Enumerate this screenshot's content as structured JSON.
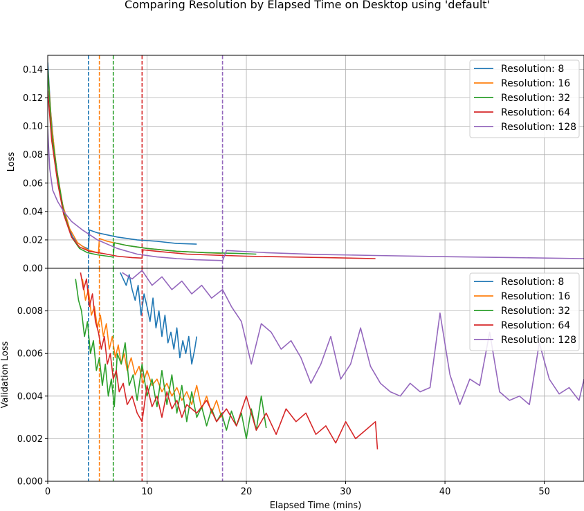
{
  "title": "Comparing Resolution by Elapsed Time on Desktop using 'default'",
  "colors": {
    "res8": "#1f77b4",
    "res16": "#ff7f0e",
    "res32": "#2ca02c",
    "res64": "#d62728",
    "res128": "#9467bd"
  },
  "chart_data": [
    {
      "type": "line",
      "panel": "top",
      "xlabel": "",
      "ylabel": "Loss",
      "xlim": [
        0,
        54
      ],
      "ylim": [
        0,
        0.15
      ],
      "yticks": [
        "0.00",
        "0.02",
        "0.04",
        "0.06",
        "0.08",
        "0.10",
        "0.12",
        "0.14"
      ],
      "grid": true,
      "legend": "upper right",
      "series": [
        {
          "name": "Resolution: 8",
          "color": "#1f77b4",
          "x": [
            0,
            0.3,
            0.7,
            1.2,
            1.8,
            2.5,
            3.0,
            3.5,
            4.0,
            4.1,
            4.2,
            5,
            7,
            9,
            11,
            13,
            15
          ],
          "y": [
            0.145,
            0.11,
            0.08,
            0.055,
            0.035,
            0.022,
            0.018,
            0.0155,
            0.014,
            0.0138,
            0.027,
            0.025,
            0.022,
            0.02,
            0.019,
            0.0175,
            0.017
          ]
        },
        {
          "name": "Resolution: 16",
          "color": "#ff7f0e",
          "x": [
            0,
            0.4,
            0.9,
            1.5,
            2.2,
            3.0,
            4.0,
            5.0,
            5.1,
            5.2,
            6,
            8,
            10,
            13,
            16,
            17.5
          ],
          "y": [
            0.14,
            0.1,
            0.07,
            0.045,
            0.028,
            0.018,
            0.013,
            0.011,
            0.0105,
            0.021,
            0.019,
            0.016,
            0.014,
            0.012,
            0.011,
            0.0105
          ]
        },
        {
          "name": "Resolution: 32",
          "color": "#2ca02c",
          "x": [
            0,
            0.4,
            1.0,
            1.6,
            2.4,
            3.2,
            4.0,
            5.0,
            6.0,
            6.5,
            6.6,
            6.7,
            8,
            10,
            13,
            16,
            19,
            21
          ],
          "y": [
            0.14,
            0.095,
            0.065,
            0.04,
            0.022,
            0.014,
            0.011,
            0.0095,
            0.0085,
            0.008,
            0.0078,
            0.018,
            0.016,
            0.014,
            0.012,
            0.011,
            0.0105,
            0.01
          ]
        },
        {
          "name": "Resolution: 64",
          "color": "#d62728",
          "x": [
            0,
            0.4,
            1.0,
            1.6,
            2.4,
            3.2,
            4.2,
            5.5,
            7.0,
            8.5,
            9.4,
            9.5,
            9.6,
            11,
            14,
            17,
            20,
            24,
            28,
            33
          ],
          "y": [
            0.125,
            0.09,
            0.06,
            0.038,
            0.022,
            0.015,
            0.012,
            0.0105,
            0.0085,
            0.0075,
            0.0072,
            0.0071,
            0.013,
            0.012,
            0.01,
            0.0092,
            0.0085,
            0.008,
            0.0075,
            0.0068
          ]
        },
        {
          "name": "Resolution: 128",
          "color": "#9467bd",
          "x": [
            0,
            0.2,
            0.5,
            1.0,
            1.6,
            2.4,
            3.5,
            5.0,
            7.0,
            9.0,
            11,
            13,
            15,
            17.4,
            17.5,
            17.6,
            18,
            22,
            27,
            33,
            40,
            47,
            54
          ],
          "y": [
            0.098,
            0.07,
            0.055,
            0.047,
            0.04,
            0.033,
            0.027,
            0.02,
            0.014,
            0.01,
            0.008,
            0.0068,
            0.006,
            0.0055,
            0.0054,
            0.0052,
            0.0125,
            0.011,
            0.0098,
            0.009,
            0.0082,
            0.0075,
            0.0068
          ]
        }
      ],
      "vlines": [
        {
          "x": 4.1,
          "color": "#1f77b4"
        },
        {
          "x": 5.2,
          "color": "#ff7f0e"
        },
        {
          "x": 6.6,
          "color": "#2ca02c"
        },
        {
          "x": 9.5,
          "color": "#d62728"
        },
        {
          "x": 17.6,
          "color": "#9467bd"
        }
      ]
    },
    {
      "type": "line",
      "panel": "bottom",
      "xlabel": "Elapsed Time (mins)",
      "ylabel": "Validation Loss",
      "xlim": [
        0,
        54
      ],
      "ylim": [
        0,
        0.01
      ],
      "xticks": [
        "0",
        "10",
        "20",
        "30",
        "40",
        "50"
      ],
      "yticks": [
        "0.000",
        "0.002",
        "0.004",
        "0.006",
        "0.008"
      ],
      "grid": true,
      "legend": "upper right",
      "series": [
        {
          "name": "Resolution: 8",
          "color": "#1f77b4",
          "x": [
            7.3,
            7.6,
            7.9,
            8.2,
            8.5,
            8.8,
            9.1,
            9.4,
            9.7,
            10.0,
            10.3,
            10.6,
            10.9,
            11.2,
            11.5,
            11.8,
            12.1,
            12.4,
            12.7,
            13.0,
            13.3,
            13.6,
            13.9,
            14.2,
            14.5,
            14.8,
            15.0
          ],
          "y": [
            0.0098,
            0.0095,
            0.0092,
            0.0097,
            0.009,
            0.0085,
            0.0092,
            0.0078,
            0.0088,
            0.0082,
            0.0075,
            0.0086,
            0.0072,
            0.008,
            0.0068,
            0.0078,
            0.0065,
            0.007,
            0.0062,
            0.0072,
            0.0058,
            0.0066,
            0.006,
            0.0068,
            0.0055,
            0.0062,
            0.0068
          ]
        },
        {
          "name": "Resolution: 16",
          "color": "#ff7f0e",
          "x": [
            3.5,
            3.8,
            4.1,
            4.4,
            4.7,
            5.0,
            5.3,
            5.6,
            5.9,
            6.2,
            6.5,
            6.8,
            7.1,
            7.4,
            7.7,
            8.0,
            8.4,
            8.8,
            9.2,
            9.6,
            10,
            10.5,
            11,
            11.5,
            12,
            12.5,
            13,
            13.5,
            14,
            14.5,
            15,
            15.5,
            16,
            16.5,
            17,
            17.5
          ],
          "y": [
            0.0095,
            0.0085,
            0.009,
            0.0078,
            0.0082,
            0.0072,
            0.0078,
            0.0068,
            0.0074,
            0.0062,
            0.0068,
            0.0058,
            0.0064,
            0.0055,
            0.006,
            0.0052,
            0.0058,
            0.005,
            0.0054,
            0.0046,
            0.0052,
            0.0045,
            0.0048,
            0.0042,
            0.0046,
            0.004,
            0.0044,
            0.0038,
            0.0042,
            0.0036,
            0.0045,
            0.0034,
            0.004,
            0.0032,
            0.0038,
            0.003
          ]
        },
        {
          "name": "Resolution: 32",
          "color": "#2ca02c",
          "x": [
            2.8,
            3.1,
            3.4,
            3.7,
            4.0,
            4.3,
            4.6,
            4.9,
            5.2,
            5.5,
            5.8,
            6.1,
            6.4,
            6.7,
            7.0,
            7.4,
            7.8,
            8.2,
            8.6,
            9.0,
            9.5,
            10,
            10.5,
            11,
            11.5,
            12,
            12.5,
            13,
            13.5,
            14,
            14.5,
            15,
            15.5,
            16,
            16.5,
            17,
            17.5,
            18,
            18.5,
            19,
            19.5,
            20,
            20.5,
            21,
            21.5,
            22
          ],
          "y": [
            0.0095,
            0.0085,
            0.008,
            0.0068,
            0.0075,
            0.006,
            0.0066,
            0.0052,
            0.0058,
            0.0045,
            0.0055,
            0.004,
            0.0048,
            0.0035,
            0.006,
            0.0055,
            0.0065,
            0.0045,
            0.005,
            0.0038,
            0.0055,
            0.004,
            0.0048,
            0.0035,
            0.0052,
            0.0036,
            0.005,
            0.0032,
            0.0045,
            0.0028,
            0.0042,
            0.003,
            0.0035,
            0.0026,
            0.0034,
            0.0028,
            0.0032,
            0.0024,
            0.0033,
            0.0026,
            0.0032,
            0.002,
            0.0034,
            0.0024,
            0.004,
            0.0025
          ]
        },
        {
          "name": "Resolution: 64",
          "color": "#d62728",
          "x": [
            3.3,
            3.6,
            3.9,
            4.2,
            4.5,
            4.8,
            5.1,
            5.4,
            5.7,
            6.0,
            6.3,
            6.6,
            6.9,
            7.2,
            7.6,
            8.0,
            8.5,
            9.0,
            9.5,
            10,
            10.5,
            11,
            11.5,
            12,
            12.5,
            13,
            13.5,
            14,
            15,
            16,
            17,
            18,
            19,
            20,
            21,
            22,
            23,
            24,
            25,
            26,
            27,
            28,
            29,
            30,
            31,
            32,
            33,
            33.2
          ],
          "y": [
            0.0098,
            0.009,
            0.0095,
            0.0082,
            0.0088,
            0.0075,
            0.007,
            0.0062,
            0.0068,
            0.0055,
            0.006,
            0.0048,
            0.0052,
            0.0042,
            0.0046,
            0.0036,
            0.004,
            0.0032,
            0.0028,
            0.0045,
            0.0035,
            0.004,
            0.003,
            0.0042,
            0.0034,
            0.0038,
            0.003,
            0.0036,
            0.0032,
            0.0038,
            0.0028,
            0.0034,
            0.0026,
            0.004,
            0.0024,
            0.0032,
            0.0022,
            0.0034,
            0.0028,
            0.0032,
            0.0022,
            0.0026,
            0.0018,
            0.0028,
            0.002,
            0.0024,
            0.0028,
            0.0015
          ]
        },
        {
          "name": "Resolution: 128",
          "color": "#9467bd",
          "x": [
            7.5,
            8.5,
            9.5,
            10.5,
            11.5,
            12.5,
            13.5,
            14.5,
            15.5,
            16.5,
            17.6,
            18.5,
            19.5,
            20.5,
            21.5,
            22.5,
            23.5,
            24.5,
            25.5,
            26.5,
            27.5,
            28.5,
            29.5,
            30.5,
            31.5,
            32.5,
            33.5,
            34.5,
            35.5,
            36.5,
            37.5,
            38.5,
            39.5,
            40.5,
            41.5,
            42.5,
            43.5,
            44.5,
            45.5,
            46.5,
            47.5,
            48.5,
            49.5,
            50.5,
            51.5,
            52.5,
            53.5,
            54
          ],
          "y": [
            0.0098,
            0.0095,
            0.0099,
            0.0092,
            0.0096,
            0.009,
            0.0094,
            0.0088,
            0.0092,
            0.0086,
            0.009,
            0.0082,
            0.0075,
            0.0055,
            0.0074,
            0.007,
            0.0062,
            0.0066,
            0.0058,
            0.0046,
            0.0055,
            0.0068,
            0.0048,
            0.0055,
            0.0072,
            0.0054,
            0.0046,
            0.0042,
            0.004,
            0.0046,
            0.0042,
            0.0044,
            0.0079,
            0.005,
            0.0036,
            0.0048,
            0.0045,
            0.007,
            0.0042,
            0.0038,
            0.004,
            0.0036,
            0.0065,
            0.0048,
            0.0041,
            0.0044,
            0.0038,
            0.0048
          ]
        }
      ],
      "vlines": [
        {
          "x": 4.1,
          "color": "#1f77b4"
        },
        {
          "x": 5.2,
          "color": "#ff7f0e"
        },
        {
          "x": 6.6,
          "color": "#2ca02c"
        },
        {
          "x": 9.5,
          "color": "#d62728"
        },
        {
          "x": 17.6,
          "color": "#9467bd"
        }
      ]
    }
  ]
}
